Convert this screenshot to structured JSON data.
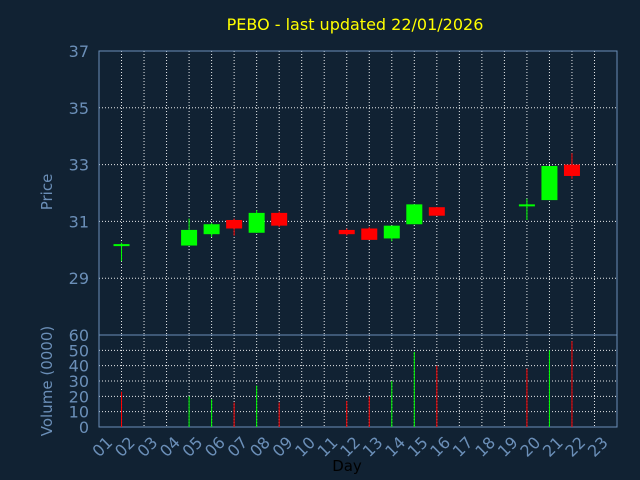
{
  "chart_data": [
    {
      "type": "candlestick",
      "title": "PEBO - last updated 22/01/2026",
      "ylabel": "Price",
      "ylim": [
        27,
        37
      ],
      "yticks": [
        "29",
        "31",
        "33",
        "35",
        "37"
      ],
      "grid": true,
      "candles": [
        {
          "day": 2,
          "open": 30.2,
          "high": 30.25,
          "low": 29.6,
          "close": 30.2
        },
        {
          "day": 5,
          "open": 30.15,
          "high": 31.1,
          "low": 30.15,
          "close": 30.7
        },
        {
          "day": 6,
          "open": 30.55,
          "high": 30.95,
          "low": 30.45,
          "close": 30.9
        },
        {
          "day": 7,
          "open": 31.05,
          "high": 31.1,
          "low": 30.5,
          "close": 30.75
        },
        {
          "day": 8,
          "open": 30.6,
          "high": 31.4,
          "low": 30.6,
          "close": 31.3
        },
        {
          "day": 9,
          "open": 31.3,
          "high": 31.35,
          "low": 30.8,
          "close": 30.85
        },
        {
          "day": 12,
          "open": 30.7,
          "high": 30.75,
          "low": 30.5,
          "close": 30.55
        },
        {
          "day": 13,
          "open": 30.75,
          "high": 30.8,
          "low": 30.35,
          "close": 30.35
        },
        {
          "day": 14,
          "open": 30.4,
          "high": 30.85,
          "low": 30.3,
          "close": 30.85
        },
        {
          "day": 15,
          "open": 30.9,
          "high": 31.6,
          "low": 30.9,
          "close": 31.6
        },
        {
          "day": 16,
          "open": 31.5,
          "high": 31.5,
          "low": 31.2,
          "close": 31.2
        },
        {
          "day": 20,
          "open": 31.6,
          "high": 31.8,
          "low": 31.05,
          "close": 31.6
        },
        {
          "day": 21,
          "open": 31.75,
          "high": 32.95,
          "low": 31.75,
          "close": 32.95
        },
        {
          "day": 22,
          "open": 33.0,
          "high": 33.4,
          "low": 32.5,
          "close": 32.6
        }
      ],
      "colors": {
        "up": "#00ff00",
        "down": "#ff0000",
        "grid": "#ffffff",
        "axis": "#6b8fb8"
      }
    },
    {
      "type": "bar",
      "ylabel": "Volume (0000)",
      "xlabel": "Day",
      "ylim": [
        0,
        60
      ],
      "yticks": [
        "0",
        "10",
        "20",
        "30",
        "40",
        "50",
        "60"
      ],
      "categories": [
        "01",
        "02",
        "03",
        "04",
        "05",
        "06",
        "07",
        "08",
        "09",
        "10",
        "11",
        "12",
        "13",
        "14",
        "15",
        "16",
        "17",
        "18",
        "19",
        "20",
        "21",
        "22",
        "23"
      ],
      "bars": [
        {
          "day": 2,
          "value": 23,
          "dir": "down"
        },
        {
          "day": 5,
          "value": 20,
          "dir": "up"
        },
        {
          "day": 6,
          "value": 18,
          "dir": "up"
        },
        {
          "day": 7,
          "value": 16,
          "dir": "down"
        },
        {
          "day": 8,
          "value": 27,
          "dir": "up"
        },
        {
          "day": 9,
          "value": 16,
          "dir": "down"
        },
        {
          "day": 12,
          "value": 17,
          "dir": "down"
        },
        {
          "day": 13,
          "value": 20,
          "dir": "down"
        },
        {
          "day": 14,
          "value": 30,
          "dir": "up"
        },
        {
          "day": 15,
          "value": 49,
          "dir": "up"
        },
        {
          "day": 16,
          "value": 40,
          "dir": "down"
        },
        {
          "day": 20,
          "value": 38,
          "dir": "down"
        },
        {
          "day": 21,
          "value": 50,
          "dir": "up"
        },
        {
          "day": 22,
          "value": 56,
          "dir": "down"
        }
      ]
    }
  ]
}
